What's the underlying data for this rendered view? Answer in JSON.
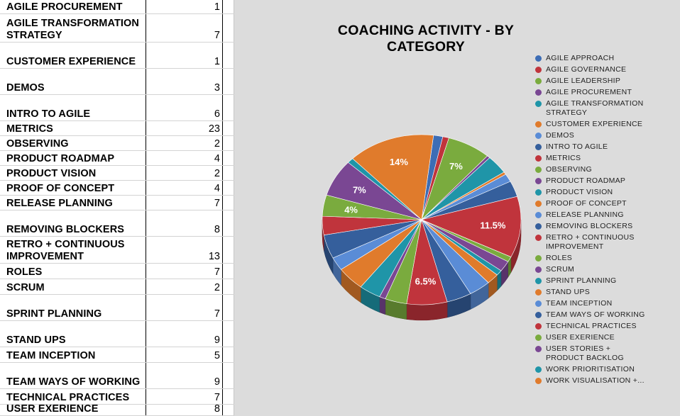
{
  "sheet": {
    "rows": [
      {
        "name": "AGILE PROCUREMENT",
        "count": "1"
      },
      {
        "name": "AGILE TRANSFORMATION\nSTRATEGY",
        "count": "7"
      },
      {
        "name": "CUSTOMER EXPERIENCE",
        "count": "1"
      },
      {
        "name": "DEMOS",
        "count": "3"
      },
      {
        "name": "INTRO TO AGILE",
        "count": "6"
      },
      {
        "name": "METRICS",
        "count": "23"
      },
      {
        "name": "OBSERVING",
        "count": "2"
      },
      {
        "name": "PRODUCT ROADMAP",
        "count": "4"
      },
      {
        "name": "PRODUCT VISION",
        "count": "2"
      },
      {
        "name": "PROOF OF CONCEPT",
        "count": "4"
      },
      {
        "name": "RELEASE PLANNING",
        "count": "7"
      },
      {
        "name": "REMOVING BLOCKERS",
        "count": "8"
      },
      {
        "name": "RETRO + CONTINUOUS\nIMPROVEMENT",
        "count": "13"
      },
      {
        "name": "ROLES",
        "count": "7"
      },
      {
        "name": "SCRUM",
        "count": "2"
      },
      {
        "name": "SPRINT PLANNING",
        "count": "7"
      },
      {
        "name": "STAND UPS",
        "count": "9"
      },
      {
        "name": "TEAM INCEPTION",
        "count": "5"
      },
      {
        "name": "TEAM WAYS OF WORKING",
        "count": "9"
      },
      {
        "name": "TECHNICAL PRACTICES",
        "count": "7"
      },
      {
        "name": "USER EXERIENCE",
        "count": "8"
      }
    ]
  },
  "chart_data": {
    "type": "pie",
    "title": "COACHING ACTIVITY - BY CATEGORY",
    "legend_position": "right",
    "slice_labels": [
      {
        "text": "7%",
        "slice": "AGILE LEADERSHIP"
      },
      {
        "text": "11.5%",
        "slice": "METRICS"
      },
      {
        "text": "6.5%",
        "slice": "RETRO + CONTINUOUS IMPROVEMENT"
      },
      {
        "text": "4%",
        "slice": "USER EXERIENCE"
      },
      {
        "text": "7%",
        "slice": "USER STORIES + PRODUCT BACKLOG"
      },
      {
        "text": "14%",
        "slice": "WORK VISUALISATION +..."
      }
    ],
    "slices": [
      {
        "name": "AGILE APPROACH",
        "value": 3,
        "color": "#3d6db5"
      },
      {
        "name": "AGILE GOVERNANCE",
        "value": 2,
        "color": "#c0343c"
      },
      {
        "name": "AGILE LEADERSHIP",
        "value": 14,
        "color": "#7aab3e"
      },
      {
        "name": "AGILE PROCUREMENT",
        "value": 1,
        "color": "#7a4793"
      },
      {
        "name": "AGILE TRANSFORMATION\nSTRATEGY",
        "value": 7,
        "color": "#1f95a8"
      },
      {
        "name": "CUSTOMER EXPERIENCE",
        "value": 1,
        "color": "#e07b2c"
      },
      {
        "name": "DEMOS",
        "value": 3,
        "color": "#5a8cd6"
      },
      {
        "name": "INTRO TO AGILE",
        "value": 6,
        "color": "#355f9c"
      },
      {
        "name": "METRICS",
        "value": 23,
        "color": "#c0343c"
      },
      {
        "name": "OBSERVING",
        "value": 2,
        "color": "#7aab3e"
      },
      {
        "name": "PRODUCT ROADMAP",
        "value": 4,
        "color": "#7a4793"
      },
      {
        "name": "PRODUCT VISION",
        "value": 2,
        "color": "#1f95a8"
      },
      {
        "name": "PROOF OF CONCEPT",
        "value": 4,
        "color": "#e07b2c"
      },
      {
        "name": "RELEASE PLANNING",
        "value": 7,
        "color": "#5a8cd6"
      },
      {
        "name": "REMOVING BLOCKERS",
        "value": 8,
        "color": "#355f9c"
      },
      {
        "name": "RETRO + CONTINUOUS\nIMPROVEMENT",
        "value": 13,
        "color": "#c0343c"
      },
      {
        "name": "ROLES",
        "value": 7,
        "color": "#7aab3e"
      },
      {
        "name": "SCRUM",
        "value": 2,
        "color": "#7a4793"
      },
      {
        "name": "SPRINT PLANNING",
        "value": 7,
        "color": "#1f95a8"
      },
      {
        "name": "STAND UPS",
        "value": 9,
        "color": "#e07b2c"
      },
      {
        "name": "TEAM INCEPTION",
        "value": 5,
        "color": "#5a8cd6"
      },
      {
        "name": "TEAM WAYS OF WORKING",
        "value": 9,
        "color": "#355f9c"
      },
      {
        "name": "TECHNICAL PRACTICES",
        "value": 7,
        "color": "#c0343c"
      },
      {
        "name": "USER EXERIENCE",
        "value": 8,
        "color": "#7aab3e"
      },
      {
        "name": "USER STORIES +\nPRODUCT BACKLOG",
        "value": 14,
        "color": "#7a4793"
      },
      {
        "name": "WORK PRIORITISATION",
        "value": 2,
        "color": "#1f95a8"
      },
      {
        "name": "WORK VISUALISATION +...",
        "value": 28,
        "color": "#e07b2c"
      }
    ]
  }
}
